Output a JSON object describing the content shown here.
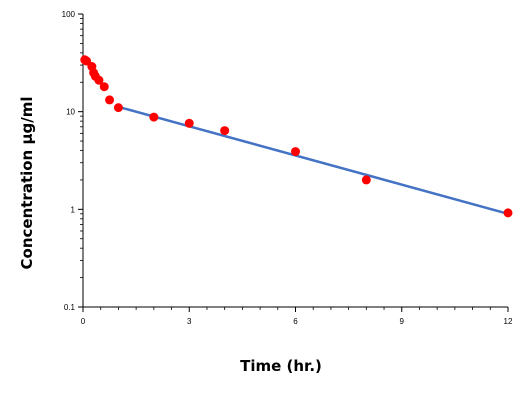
{
  "chart_data": {
    "type": "scatter",
    "title": "",
    "xlabel": "Time (hr.)",
    "ylabel": "Concentration µg/ml",
    "xlim": [
      0,
      12
    ],
    "ylim": [
      0.1,
      100
    ],
    "y_scale": "log",
    "grid": false,
    "x_ticks": [
      0,
      3,
      6,
      9,
      12
    ],
    "x_tick_labels": [
      "0",
      "3",
      "6",
      "9",
      "12"
    ],
    "y_ticks": [
      0.1,
      1,
      10,
      100
    ],
    "y_tick_labels": [
      "0.1",
      "1",
      "10",
      "100"
    ],
    "marker_color": "#ff0000",
    "line_color": "#4472c4",
    "series": [
      {
        "kind": "points",
        "x": [
          0.05,
          0.1,
          0.25,
          0.3,
          0.35,
          0.45,
          0.6,
          0.75,
          1.0,
          2.0,
          3.0,
          4.0,
          6.0,
          8.0,
          12.0
        ],
        "y": [
          34,
          33,
          29,
          25,
          23,
          21,
          18,
          13.2,
          11,
          8.8,
          7.6,
          6.4,
          3.9,
          2.0,
          0.92
        ]
      },
      {
        "kind": "fit-line",
        "x": [
          1.0,
          12.0
        ],
        "y": [
          11.2,
          0.9
        ]
      }
    ]
  }
}
